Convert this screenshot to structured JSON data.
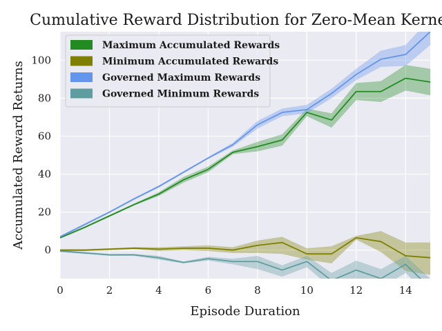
{
  "chart_data": {
    "type": "line",
    "title": "Cumulative Reward Distribution for Zero-Mean Kernels",
    "xlabel": "Episode Duration",
    "ylabel": "Accumulated Reward Returns",
    "xlim": [
      0,
      15
    ],
    "ylim": [
      -15,
      115
    ],
    "xticks": [
      0,
      2,
      4,
      6,
      8,
      10,
      12,
      14
    ],
    "yticks": [
      0,
      20,
      40,
      60,
      80,
      100
    ],
    "grid": true,
    "legend_position": "top-left",
    "x": [
      0,
      1,
      2,
      3,
      4,
      5,
      6,
      7,
      8,
      9,
      10,
      11,
      12,
      13,
      14,
      15
    ],
    "series": [
      {
        "name": "Maximum Accumulated Rewards",
        "color": "#228b22",
        "values": [
          6.5,
          12,
          18,
          24,
          29.5,
          37,
          42.5,
          51.5,
          54.5,
          58,
          72.5,
          68.5,
          83.5,
          83.5,
          90.5,
          88.5
        ],
        "lower": [
          6,
          11.5,
          17.5,
          23.5,
          28.5,
          35.5,
          41,
          50.5,
          52,
          55,
          70.5,
          64.5,
          79,
          78,
          84,
          81.5
        ],
        "upper": [
          7,
          12.5,
          18.5,
          24.5,
          30.5,
          38.5,
          44,
          52.5,
          57,
          61,
          74.5,
          72,
          88,
          89,
          97.5,
          95.5
        ]
      },
      {
        "name": "Minimum Accumulated Rewards",
        "color": "#808000",
        "values": [
          0,
          0,
          0.5,
          1,
          0.5,
          1,
          1,
          0,
          2.5,
          4,
          -2,
          -2,
          6.5,
          4.5,
          -3,
          -4
        ],
        "lower": [
          -0.5,
          -0.5,
          0,
          0.5,
          -0.5,
          0,
          -0.5,
          -1.5,
          -1.5,
          -2,
          -5,
          -7,
          5.5,
          -1,
          -11,
          -13
        ],
        "upper": [
          0.5,
          0.5,
          1,
          1.5,
          1.5,
          2,
          2.5,
          1.5,
          5,
          7,
          1,
          2,
          7.5,
          10,
          4,
          4
        ]
      },
      {
        "name": "Governed Maximum Rewards",
        "color": "#6495ed",
        "values": [
          7,
          13.5,
          20,
          27,
          33.5,
          41,
          48.5,
          55.5,
          66,
          72.5,
          74,
          82.5,
          92.5,
          100.5,
          103,
          115
        ],
        "lower": [
          6.5,
          13,
          19.5,
          26.5,
          33,
          40.5,
          48,
          54.5,
          64,
          70.5,
          72,
          80,
          89.5,
          96.5,
          97,
          108
        ],
        "upper": [
          7.5,
          14,
          20.5,
          27.5,
          34,
          41.5,
          49,
          56.5,
          68,
          74.5,
          76.5,
          85,
          95.5,
          105,
          108,
          122
        ]
      },
      {
        "name": "Governed Minimum Rewards",
        "color": "#5f9ea0",
        "values": [
          -0.5,
          -1.5,
          -2.5,
          -2.5,
          -4,
          -6.5,
          -4.5,
          -6,
          -6,
          -10.5,
          -6,
          -16,
          -10.5,
          -15,
          -7.5,
          -20
        ],
        "lower": [
          -1,
          -2,
          -3,
          -3,
          -5,
          -7,
          -5.5,
          -7.5,
          -10,
          -14,
          -9,
          -20,
          -15,
          -20,
          -12,
          -25
        ],
        "upper": [
          0,
          -1,
          -2,
          -2,
          -3,
          -6,
          -3.5,
          -4.5,
          -3,
          -8,
          -3,
          -12,
          -5.5,
          -10,
          -3,
          -15
        ]
      }
    ]
  }
}
